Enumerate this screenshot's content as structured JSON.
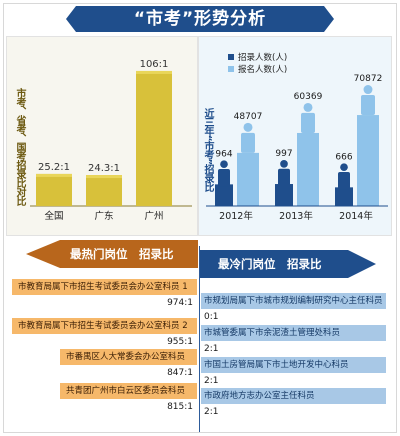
{
  "title": "“市考”形势分析",
  "chart_data": [
    {
      "type": "bar",
      "ylabel": "市考、省考、国考招录比对比",
      "categories": [
        "全国",
        "广东",
        "广州"
      ],
      "values": [
        25.2,
        24.3,
        106.1
      ],
      "data_labels": [
        "25.2:1",
        "24.3:1",
        "106:1"
      ],
      "colors": {
        "bar": "#d8c13a",
        "bar_top": "#e9d65a"
      }
    },
    {
      "type": "bar",
      "ylabel": "近三年“市考”招录比",
      "categories": [
        "2012年",
        "2013年",
        "2014年"
      ],
      "series": [
        {
          "name": "招录人数(人)",
          "values": [
            964,
            997,
            666
          ]
        },
        {
          "name": "报名人数(人)",
          "values": [
            48707,
            60369,
            70872
          ]
        }
      ],
      "legend_position": "top-left",
      "colors": {
        "recruit": "#1f4e8c",
        "applicants": "#8fc3ea"
      }
    }
  ],
  "hot": {
    "header": "最热门岗位　招录比",
    "rows": [
      {
        "job": "市教育局属下市招生考试委员会办公室科员 1",
        "ratio": "974:1"
      },
      {
        "job": "市教育局属下市招生考试委员会办公室科员 2",
        "ratio": "955:1"
      },
      {
        "job": "市番禺区人大常委会办公室科员",
        "ratio": "847:1"
      },
      {
        "job": "共青团广州市白云区委员会科员",
        "ratio": "815:1"
      }
    ]
  },
  "cold": {
    "header": "最冷门岗位　招录比",
    "rows": [
      {
        "job": "市规划局属下市城市规划编制研究中心主任科员",
        "ratio": "0:1"
      },
      {
        "job": "市城管委属下市余泥渣土管理处科员",
        "ratio": "2:1"
      },
      {
        "job": "市国土房管局属下市土地开发中心科员",
        "ratio": "2:1"
      },
      {
        "job": "市政府地方志办公室主任科员",
        "ratio": "2:1"
      }
    ]
  }
}
